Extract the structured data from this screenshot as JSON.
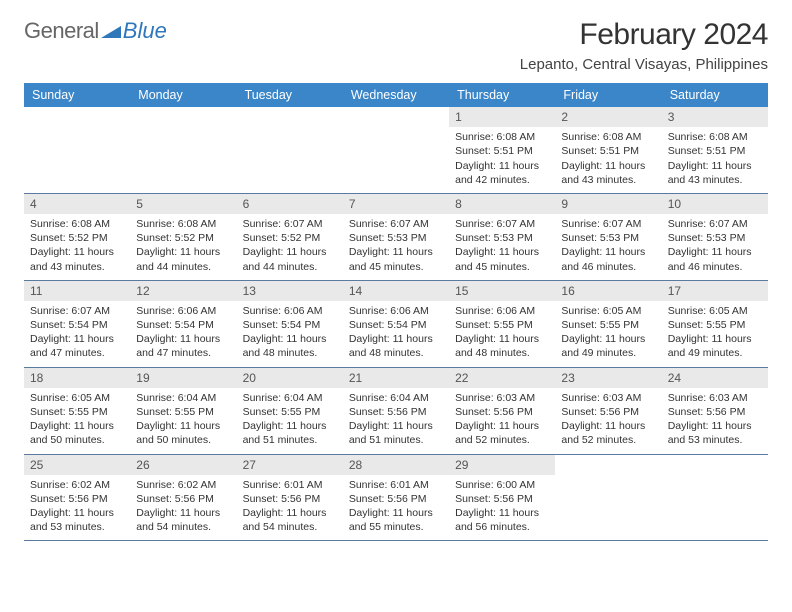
{
  "brand": {
    "part1": "General",
    "part2": "Blue"
  },
  "title": "February 2024",
  "location": "Lepanto, Central Visayas, Philippines",
  "colors": {
    "header_bg": "#3b86c8",
    "daynum_bg": "#e9e9e9",
    "row_border": "#5a7aa0",
    "brand_blue": "#2f77bb"
  },
  "day_headers": [
    "Sunday",
    "Monday",
    "Tuesday",
    "Wednesday",
    "Thursday",
    "Friday",
    "Saturday"
  ],
  "weeks": [
    [
      {
        "empty": true
      },
      {
        "empty": true
      },
      {
        "empty": true
      },
      {
        "empty": true
      },
      {
        "num": "1",
        "sunrise": "Sunrise: 6:08 AM",
        "sunset": "Sunset: 5:51 PM",
        "day1": "Daylight: 11 hours",
        "day2": "and 42 minutes."
      },
      {
        "num": "2",
        "sunrise": "Sunrise: 6:08 AM",
        "sunset": "Sunset: 5:51 PM",
        "day1": "Daylight: 11 hours",
        "day2": "and 43 minutes."
      },
      {
        "num": "3",
        "sunrise": "Sunrise: 6:08 AM",
        "sunset": "Sunset: 5:51 PM",
        "day1": "Daylight: 11 hours",
        "day2": "and 43 minutes."
      }
    ],
    [
      {
        "num": "4",
        "sunrise": "Sunrise: 6:08 AM",
        "sunset": "Sunset: 5:52 PM",
        "day1": "Daylight: 11 hours",
        "day2": "and 43 minutes."
      },
      {
        "num": "5",
        "sunrise": "Sunrise: 6:08 AM",
        "sunset": "Sunset: 5:52 PM",
        "day1": "Daylight: 11 hours",
        "day2": "and 44 minutes."
      },
      {
        "num": "6",
        "sunrise": "Sunrise: 6:07 AM",
        "sunset": "Sunset: 5:52 PM",
        "day1": "Daylight: 11 hours",
        "day2": "and 44 minutes."
      },
      {
        "num": "7",
        "sunrise": "Sunrise: 6:07 AM",
        "sunset": "Sunset: 5:53 PM",
        "day1": "Daylight: 11 hours",
        "day2": "and 45 minutes."
      },
      {
        "num": "8",
        "sunrise": "Sunrise: 6:07 AM",
        "sunset": "Sunset: 5:53 PM",
        "day1": "Daylight: 11 hours",
        "day2": "and 45 minutes."
      },
      {
        "num": "9",
        "sunrise": "Sunrise: 6:07 AM",
        "sunset": "Sunset: 5:53 PM",
        "day1": "Daylight: 11 hours",
        "day2": "and 46 minutes."
      },
      {
        "num": "10",
        "sunrise": "Sunrise: 6:07 AM",
        "sunset": "Sunset: 5:53 PM",
        "day1": "Daylight: 11 hours",
        "day2": "and 46 minutes."
      }
    ],
    [
      {
        "num": "11",
        "sunrise": "Sunrise: 6:07 AM",
        "sunset": "Sunset: 5:54 PM",
        "day1": "Daylight: 11 hours",
        "day2": "and 47 minutes."
      },
      {
        "num": "12",
        "sunrise": "Sunrise: 6:06 AM",
        "sunset": "Sunset: 5:54 PM",
        "day1": "Daylight: 11 hours",
        "day2": "and 47 minutes."
      },
      {
        "num": "13",
        "sunrise": "Sunrise: 6:06 AM",
        "sunset": "Sunset: 5:54 PM",
        "day1": "Daylight: 11 hours",
        "day2": "and 48 minutes."
      },
      {
        "num": "14",
        "sunrise": "Sunrise: 6:06 AM",
        "sunset": "Sunset: 5:54 PM",
        "day1": "Daylight: 11 hours",
        "day2": "and 48 minutes."
      },
      {
        "num": "15",
        "sunrise": "Sunrise: 6:06 AM",
        "sunset": "Sunset: 5:55 PM",
        "day1": "Daylight: 11 hours",
        "day2": "and 48 minutes."
      },
      {
        "num": "16",
        "sunrise": "Sunrise: 6:05 AM",
        "sunset": "Sunset: 5:55 PM",
        "day1": "Daylight: 11 hours",
        "day2": "and 49 minutes."
      },
      {
        "num": "17",
        "sunrise": "Sunrise: 6:05 AM",
        "sunset": "Sunset: 5:55 PM",
        "day1": "Daylight: 11 hours",
        "day2": "and 49 minutes."
      }
    ],
    [
      {
        "num": "18",
        "sunrise": "Sunrise: 6:05 AM",
        "sunset": "Sunset: 5:55 PM",
        "day1": "Daylight: 11 hours",
        "day2": "and 50 minutes."
      },
      {
        "num": "19",
        "sunrise": "Sunrise: 6:04 AM",
        "sunset": "Sunset: 5:55 PM",
        "day1": "Daylight: 11 hours",
        "day2": "and 50 minutes."
      },
      {
        "num": "20",
        "sunrise": "Sunrise: 6:04 AM",
        "sunset": "Sunset: 5:55 PM",
        "day1": "Daylight: 11 hours",
        "day2": "and 51 minutes."
      },
      {
        "num": "21",
        "sunrise": "Sunrise: 6:04 AM",
        "sunset": "Sunset: 5:56 PM",
        "day1": "Daylight: 11 hours",
        "day2": "and 51 minutes."
      },
      {
        "num": "22",
        "sunrise": "Sunrise: 6:03 AM",
        "sunset": "Sunset: 5:56 PM",
        "day1": "Daylight: 11 hours",
        "day2": "and 52 minutes."
      },
      {
        "num": "23",
        "sunrise": "Sunrise: 6:03 AM",
        "sunset": "Sunset: 5:56 PM",
        "day1": "Daylight: 11 hours",
        "day2": "and 52 minutes."
      },
      {
        "num": "24",
        "sunrise": "Sunrise: 6:03 AM",
        "sunset": "Sunset: 5:56 PM",
        "day1": "Daylight: 11 hours",
        "day2": "and 53 minutes."
      }
    ],
    [
      {
        "num": "25",
        "sunrise": "Sunrise: 6:02 AM",
        "sunset": "Sunset: 5:56 PM",
        "day1": "Daylight: 11 hours",
        "day2": "and 53 minutes."
      },
      {
        "num": "26",
        "sunrise": "Sunrise: 6:02 AM",
        "sunset": "Sunset: 5:56 PM",
        "day1": "Daylight: 11 hours",
        "day2": "and 54 minutes."
      },
      {
        "num": "27",
        "sunrise": "Sunrise: 6:01 AM",
        "sunset": "Sunset: 5:56 PM",
        "day1": "Daylight: 11 hours",
        "day2": "and 54 minutes."
      },
      {
        "num": "28",
        "sunrise": "Sunrise: 6:01 AM",
        "sunset": "Sunset: 5:56 PM",
        "day1": "Daylight: 11 hours",
        "day2": "and 55 minutes."
      },
      {
        "num": "29",
        "sunrise": "Sunrise: 6:00 AM",
        "sunset": "Sunset: 5:56 PM",
        "day1": "Daylight: 11 hours",
        "day2": "and 56 minutes."
      },
      {
        "empty": true
      },
      {
        "empty": true
      }
    ]
  ]
}
